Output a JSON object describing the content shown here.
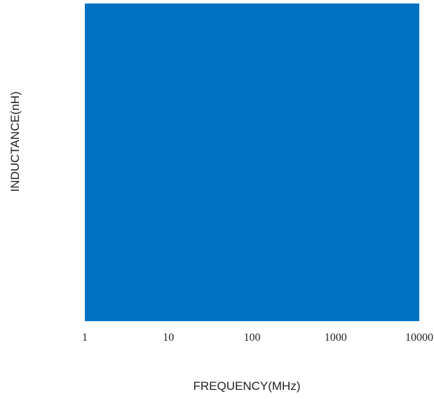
{
  "chart_data": {
    "type": "area",
    "title": "",
    "xlabel": "FREQUENCY(MHz)",
    "ylabel": "INDUCTANCE(nH)",
    "x_scale": "log",
    "xlim": [
      1,
      10000
    ],
    "x_ticks": [
      1,
      10,
      100,
      1000,
      10000
    ],
    "x_tick_labels": [
      "1",
      "10",
      "100",
      "1000",
      "10000"
    ],
    "y_ticks": [],
    "grid": false,
    "legend": "none",
    "series": [],
    "plot_fill_color": "#0071C0"
  }
}
